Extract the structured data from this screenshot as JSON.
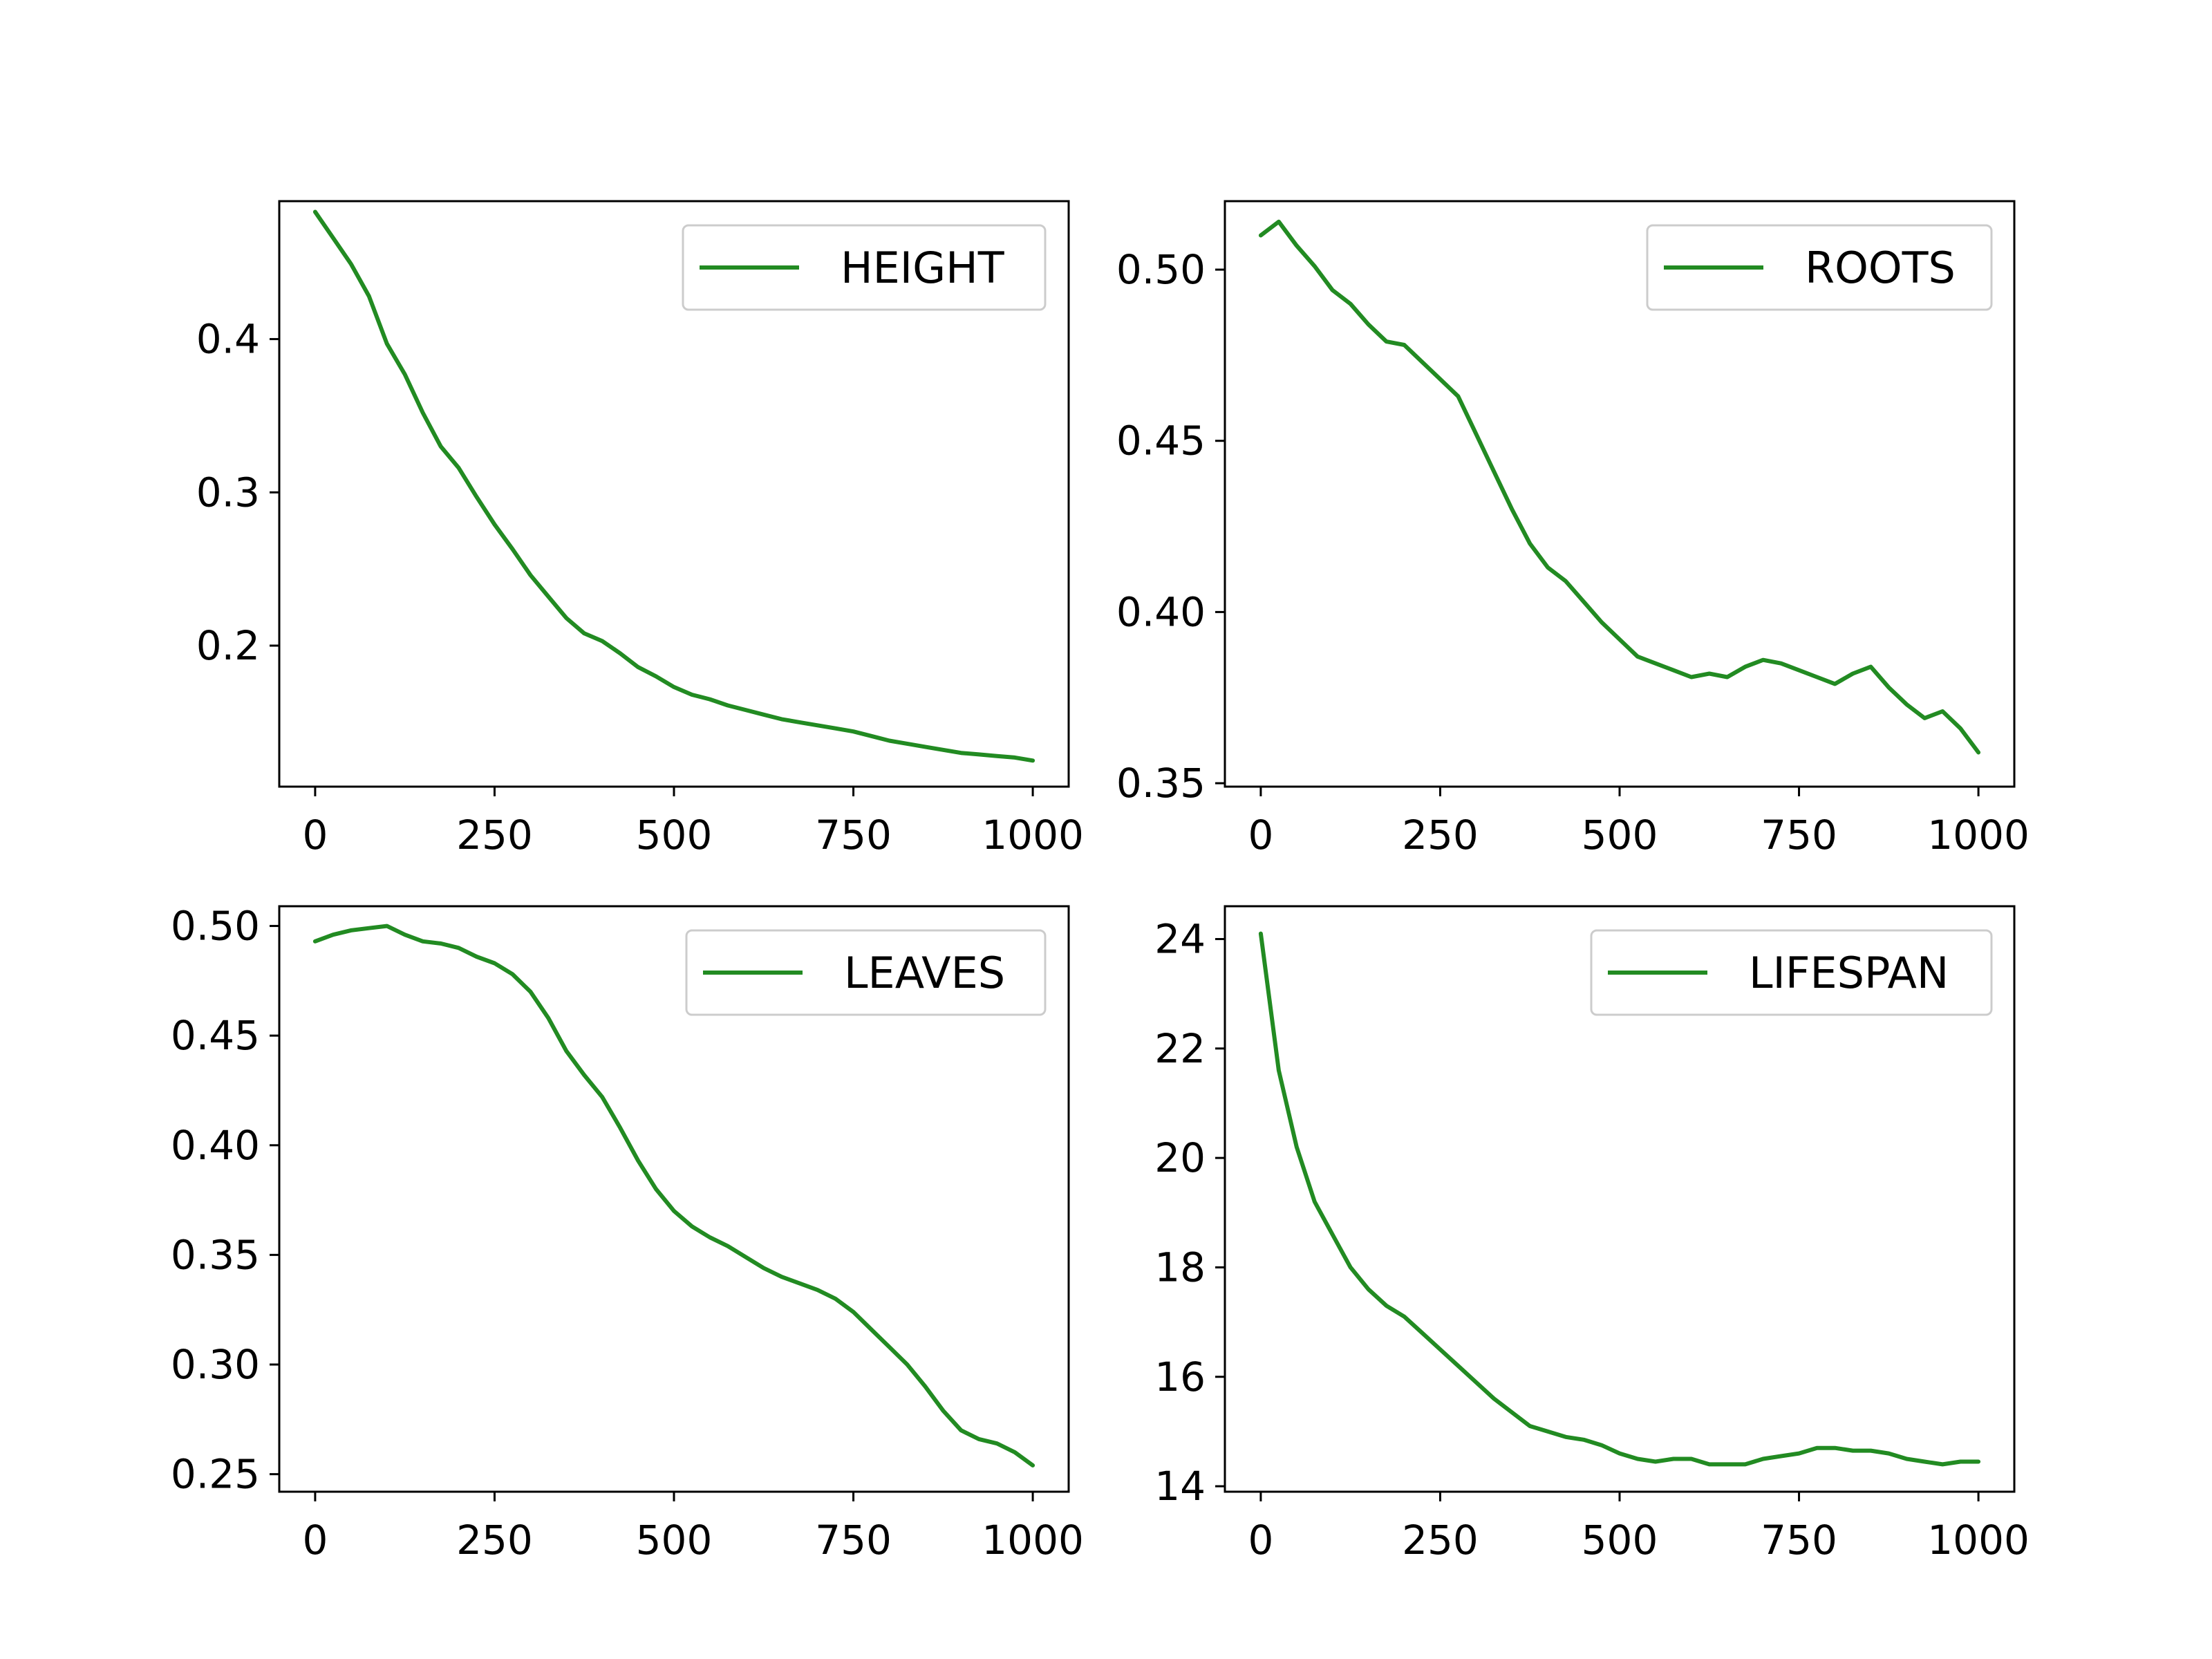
{
  "figure": {
    "background": "#ffffff"
  },
  "line_color": "#228b22",
  "chart_data": [
    {
      "type": "line",
      "legend": "HEIGHT",
      "legend_loc": "upper right",
      "grid": false,
      "xlim": [
        -50,
        1050
      ],
      "ylim": [
        0.108,
        0.49
      ],
      "xticks": [
        0,
        250,
        500,
        750,
        1000
      ],
      "yticks": [
        0.2,
        0.3,
        0.4
      ],
      "ytick_labels": [
        "0.2",
        "0.3",
        "0.4"
      ],
      "x": [
        0,
        25,
        50,
        75,
        100,
        125,
        150,
        175,
        200,
        225,
        250,
        275,
        300,
        325,
        350,
        375,
        400,
        425,
        450,
        475,
        500,
        525,
        550,
        575,
        600,
        625,
        650,
        675,
        700,
        725,
        750,
        775,
        800,
        825,
        850,
        875,
        900,
        925,
        950,
        975,
        1000
      ],
      "y": [
        0.483,
        0.466,
        0.449,
        0.428,
        0.397,
        0.377,
        0.352,
        0.33,
        0.316,
        0.297,
        0.279,
        0.263,
        0.246,
        0.232,
        0.218,
        0.208,
        0.203,
        0.195,
        0.186,
        0.18,
        0.173,
        0.168,
        0.165,
        0.161,
        0.158,
        0.155,
        0.152,
        0.15,
        0.148,
        0.146,
        0.144,
        0.141,
        0.138,
        0.136,
        0.134,
        0.132,
        0.13,
        0.129,
        0.128,
        0.127,
        0.125
      ]
    },
    {
      "type": "line",
      "legend": "ROOTS",
      "legend_loc": "upper right",
      "grid": false,
      "xlim": [
        -50,
        1050
      ],
      "ylim": [
        0.349,
        0.52
      ],
      "xticks": [
        0,
        250,
        500,
        750,
        1000
      ],
      "yticks": [
        0.35,
        0.4,
        0.45,
        0.5
      ],
      "ytick_labels": [
        "0.35",
        "0.40",
        "0.45",
        "0.50"
      ],
      "x": [
        0,
        25,
        50,
        75,
        100,
        125,
        150,
        175,
        200,
        225,
        250,
        275,
        300,
        325,
        350,
        375,
        400,
        425,
        450,
        475,
        500,
        525,
        550,
        575,
        600,
        625,
        650,
        675,
        700,
        725,
        750,
        775,
        800,
        825,
        850,
        875,
        900,
        925,
        950,
        975,
        1000
      ],
      "y": [
        0.51,
        0.514,
        0.507,
        0.501,
        0.494,
        0.49,
        0.484,
        0.479,
        0.478,
        0.473,
        0.468,
        0.463,
        0.452,
        0.441,
        0.43,
        0.42,
        0.413,
        0.409,
        0.403,
        0.397,
        0.392,
        0.387,
        0.385,
        0.383,
        0.381,
        0.382,
        0.381,
        0.384,
        0.386,
        0.385,
        0.383,
        0.381,
        0.379,
        0.382,
        0.384,
        0.378,
        0.373,
        0.369,
        0.371,
        0.366,
        0.359
      ]
    },
    {
      "type": "line",
      "legend": "LEAVES",
      "legend_loc": "upper right",
      "grid": false,
      "xlim": [
        -50,
        1050
      ],
      "ylim": [
        0.242,
        0.509
      ],
      "xticks": [
        0,
        250,
        500,
        750,
        1000
      ],
      "yticks": [
        0.25,
        0.3,
        0.35,
        0.4,
        0.45,
        0.5
      ],
      "ytick_labels": [
        "0.25",
        "0.30",
        "0.35",
        "0.40",
        "0.45",
        "0.50"
      ],
      "x": [
        0,
        25,
        50,
        75,
        100,
        125,
        150,
        175,
        200,
        225,
        250,
        275,
        300,
        325,
        350,
        375,
        400,
        425,
        450,
        475,
        500,
        525,
        550,
        575,
        600,
        625,
        650,
        675,
        700,
        725,
        750,
        775,
        800,
        825,
        850,
        875,
        900,
        925,
        950,
        975,
        1000
      ],
      "y": [
        0.493,
        0.496,
        0.498,
        0.499,
        0.5,
        0.496,
        0.493,
        0.492,
        0.49,
        0.486,
        0.483,
        0.478,
        0.47,
        0.458,
        0.443,
        0.432,
        0.422,
        0.408,
        0.393,
        0.38,
        0.37,
        0.363,
        0.358,
        0.354,
        0.349,
        0.344,
        0.34,
        0.337,
        0.334,
        0.33,
        0.324,
        0.316,
        0.308,
        0.3,
        0.29,
        0.279,
        0.27,
        0.266,
        0.264,
        0.26,
        0.254
      ]
    },
    {
      "type": "line",
      "legend": "LIFESPAN",
      "legend_loc": "upper right",
      "grid": false,
      "xlim": [
        -50,
        1050
      ],
      "ylim": [
        13.9,
        24.6
      ],
      "xticks": [
        0,
        250,
        500,
        750,
        1000
      ],
      "yticks": [
        14,
        16,
        18,
        20,
        22,
        24
      ],
      "ytick_labels": [
        "14",
        "16",
        "18",
        "20",
        "22",
        "24"
      ],
      "x": [
        0,
        25,
        50,
        75,
        100,
        125,
        150,
        175,
        200,
        225,
        250,
        275,
        300,
        325,
        350,
        375,
        400,
        425,
        450,
        475,
        500,
        525,
        550,
        575,
        600,
        625,
        650,
        675,
        700,
        725,
        750,
        775,
        800,
        825,
        850,
        875,
        900,
        925,
        950,
        975,
        1000
      ],
      "y": [
        24.1,
        21.6,
        20.2,
        19.2,
        18.6,
        18.0,
        17.6,
        17.3,
        17.1,
        16.8,
        16.5,
        16.2,
        15.9,
        15.6,
        15.35,
        15.1,
        15.0,
        14.9,
        14.85,
        14.75,
        14.6,
        14.5,
        14.45,
        14.5,
        14.5,
        14.4,
        14.4,
        14.4,
        14.5,
        14.55,
        14.6,
        14.7,
        14.7,
        14.65,
        14.65,
        14.6,
        14.5,
        14.45,
        14.4,
        14.45,
        14.45
      ]
    }
  ]
}
